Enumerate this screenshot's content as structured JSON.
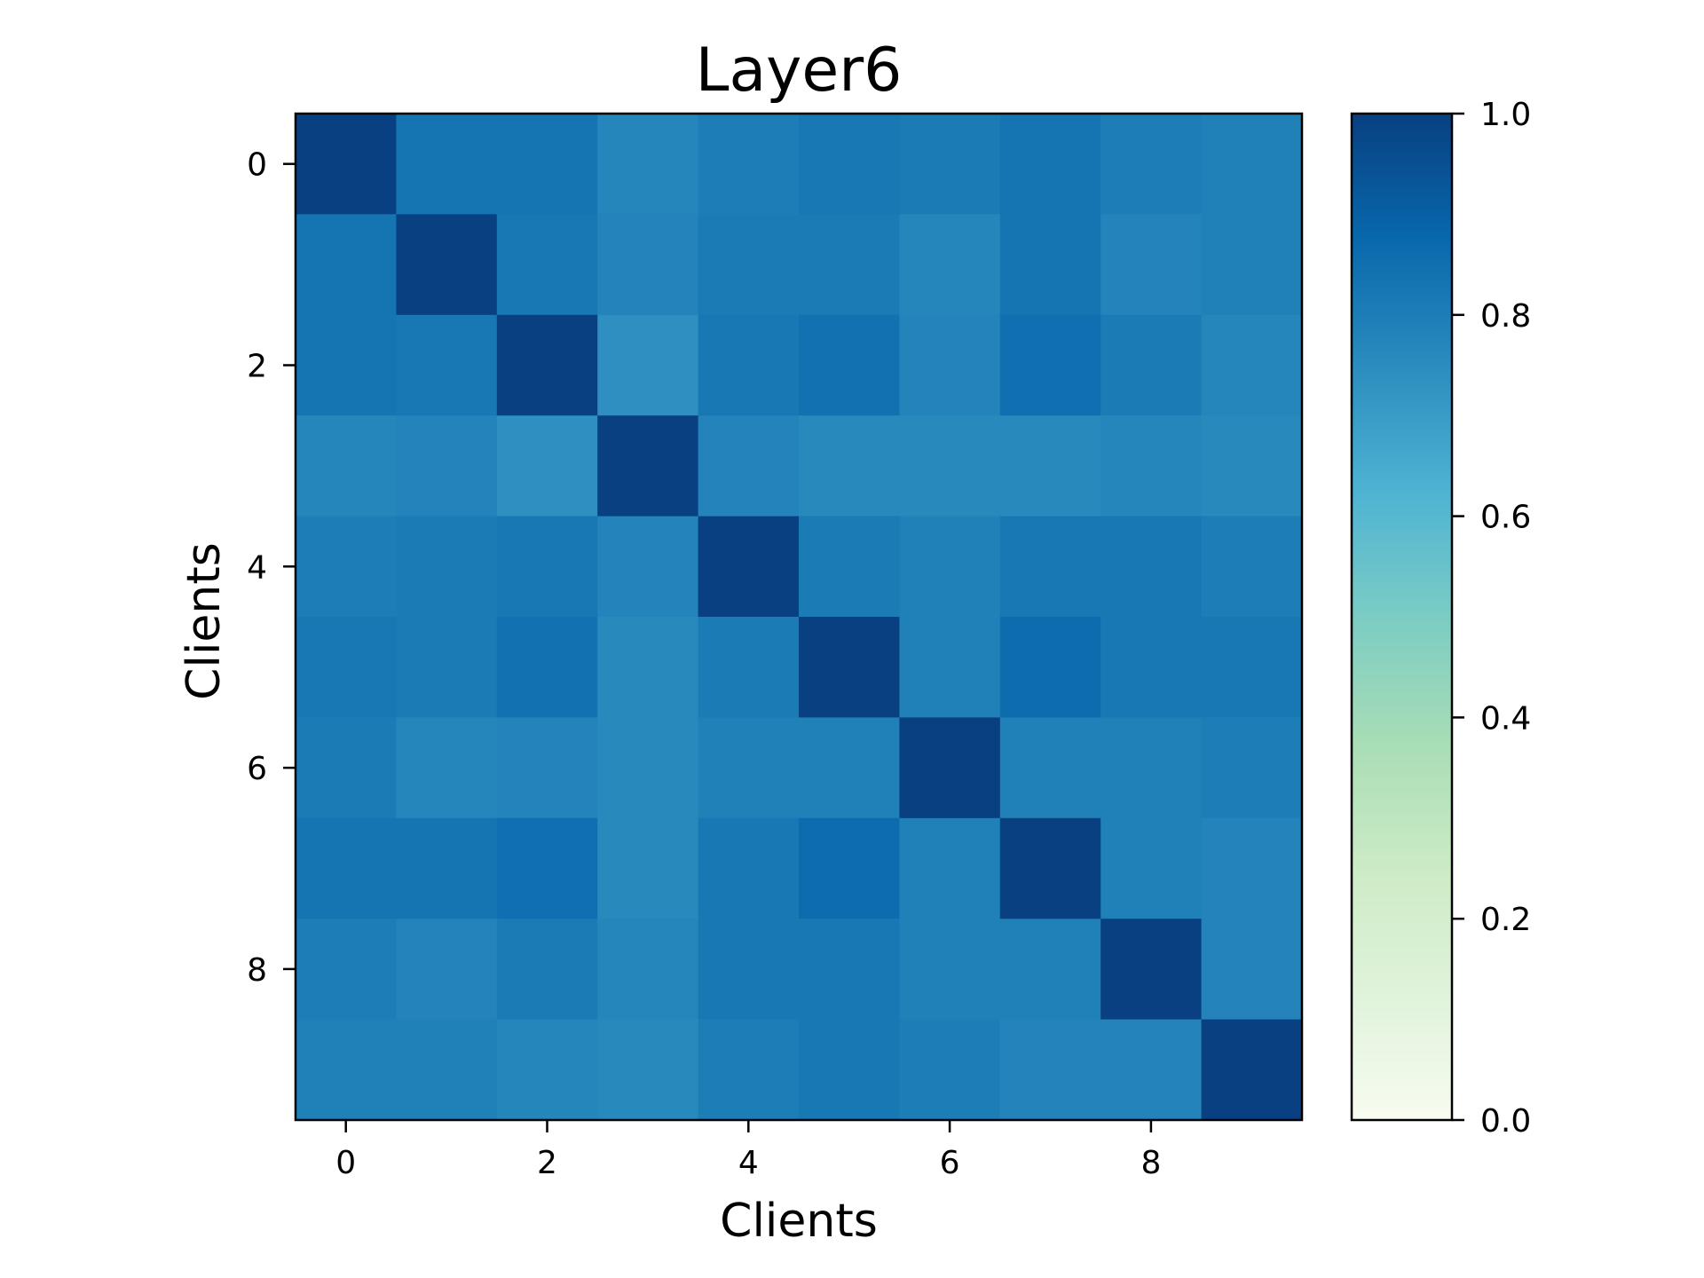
{
  "chart_data": {
    "type": "heatmap",
    "title": "Layer6",
    "xlabel": "Clients",
    "ylabel": "Clients",
    "x_ticks": [
      0,
      2,
      4,
      6,
      8
    ],
    "y_ticks": [
      0,
      2,
      4,
      6,
      8
    ],
    "colorbar": {
      "colormap": "GnBu",
      "range": [
        0.0,
        1.0
      ],
      "ticks": [
        "0.0",
        "0.2",
        "0.4",
        "0.6",
        "0.8",
        "1.0"
      ],
      "stops": [
        "#f7fcf0",
        "#e0f3db",
        "#ccebc5",
        "#a8ddb5",
        "#7bccc4",
        "#4eb3d3",
        "#2b8cbe",
        "#0868ac",
        "#084081"
      ]
    },
    "rows": [
      0,
      1,
      2,
      3,
      4,
      5,
      6,
      7,
      8,
      9
    ],
    "columns": [
      0,
      1,
      2,
      3,
      4,
      5,
      6,
      7,
      8,
      9
    ],
    "values": [
      [
        1.0,
        0.83,
        0.83,
        0.77,
        0.8,
        0.82,
        0.81,
        0.83,
        0.8,
        0.79
      ],
      [
        0.83,
        1.0,
        0.82,
        0.78,
        0.81,
        0.81,
        0.77,
        0.83,
        0.78,
        0.79
      ],
      [
        0.83,
        0.82,
        1.0,
        0.74,
        0.82,
        0.84,
        0.78,
        0.85,
        0.81,
        0.77
      ],
      [
        0.77,
        0.78,
        0.74,
        1.0,
        0.78,
        0.76,
        0.76,
        0.76,
        0.77,
        0.76
      ],
      [
        0.8,
        0.81,
        0.82,
        0.78,
        1.0,
        0.81,
        0.79,
        0.82,
        0.82,
        0.8
      ],
      [
        0.82,
        0.81,
        0.84,
        0.76,
        0.81,
        1.0,
        0.79,
        0.86,
        0.82,
        0.82
      ],
      [
        0.81,
        0.77,
        0.78,
        0.76,
        0.79,
        0.79,
        1.0,
        0.79,
        0.79,
        0.8
      ],
      [
        0.83,
        0.83,
        0.85,
        0.76,
        0.82,
        0.86,
        0.79,
        1.0,
        0.79,
        0.78
      ],
      [
        0.8,
        0.78,
        0.81,
        0.77,
        0.82,
        0.82,
        0.79,
        0.79,
        1.0,
        0.78
      ],
      [
        0.79,
        0.79,
        0.77,
        0.76,
        0.8,
        0.82,
        0.8,
        0.78,
        0.78,
        1.0
      ]
    ]
  }
}
